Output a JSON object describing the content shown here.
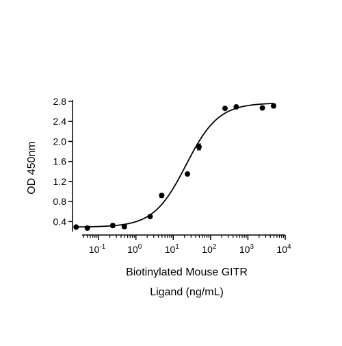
{
  "chart_data": {
    "type": "scatter",
    "title": "",
    "xlabel_lines": [
      "Biotinylated Mouse GITR",
      "Ligand (ng/mL)"
    ],
    "ylabel": "OD 450nm",
    "x_scale": "log",
    "xlim": [
      0.02,
      10000
    ],
    "ylim": [
      0.2,
      2.8
    ],
    "y_ticks": [
      "0.4",
      "0.8",
      "1.2",
      "1.6",
      "2.0",
      "2.4",
      "2.8"
    ],
    "x_ticks": [
      {
        "base": "10",
        "exp": "-1",
        "value": 0.1
      },
      {
        "base": "10",
        "exp": "0",
        "value": 1
      },
      {
        "base": "10",
        "exp": "1",
        "value": 10
      },
      {
        "base": "10",
        "exp": "2",
        "value": 100
      },
      {
        "base": "10",
        "exp": "3",
        "value": 1000
      },
      {
        "base": "10",
        "exp": "4",
        "value": 10000
      }
    ],
    "points": [
      {
        "x": 0.025,
        "y": 0.29,
        "err": 0.01
      },
      {
        "x": 0.05,
        "y": 0.27,
        "err": 0.01
      },
      {
        "x": 0.24,
        "y": 0.32,
        "err": 0.04
      },
      {
        "x": 0.49,
        "y": 0.3,
        "err": 0.04
      },
      {
        "x": 2.4,
        "y": 0.5,
        "err": 0.01
      },
      {
        "x": 4.9,
        "y": 0.92,
        "err": 0.04
      },
      {
        "x": 24,
        "y": 1.35,
        "err": 0.01
      },
      {
        "x": 49,
        "y": 1.89,
        "err": 0.06
      },
      {
        "x": 244,
        "y": 2.66,
        "err": 0.01
      },
      {
        "x": 488,
        "y": 2.69,
        "err": 0.01
      },
      {
        "x": 2440,
        "y": 2.67,
        "err": 0.01
      },
      {
        "x": 4880,
        "y": 2.71,
        "err": 0.04
      }
    ],
    "fit": {
      "type": "4PL",
      "bottom": 0.29,
      "top": 2.77,
      "ec50": 22,
      "hill": 1.0
    },
    "grid": false,
    "legend": "none",
    "color": "#000000"
  }
}
